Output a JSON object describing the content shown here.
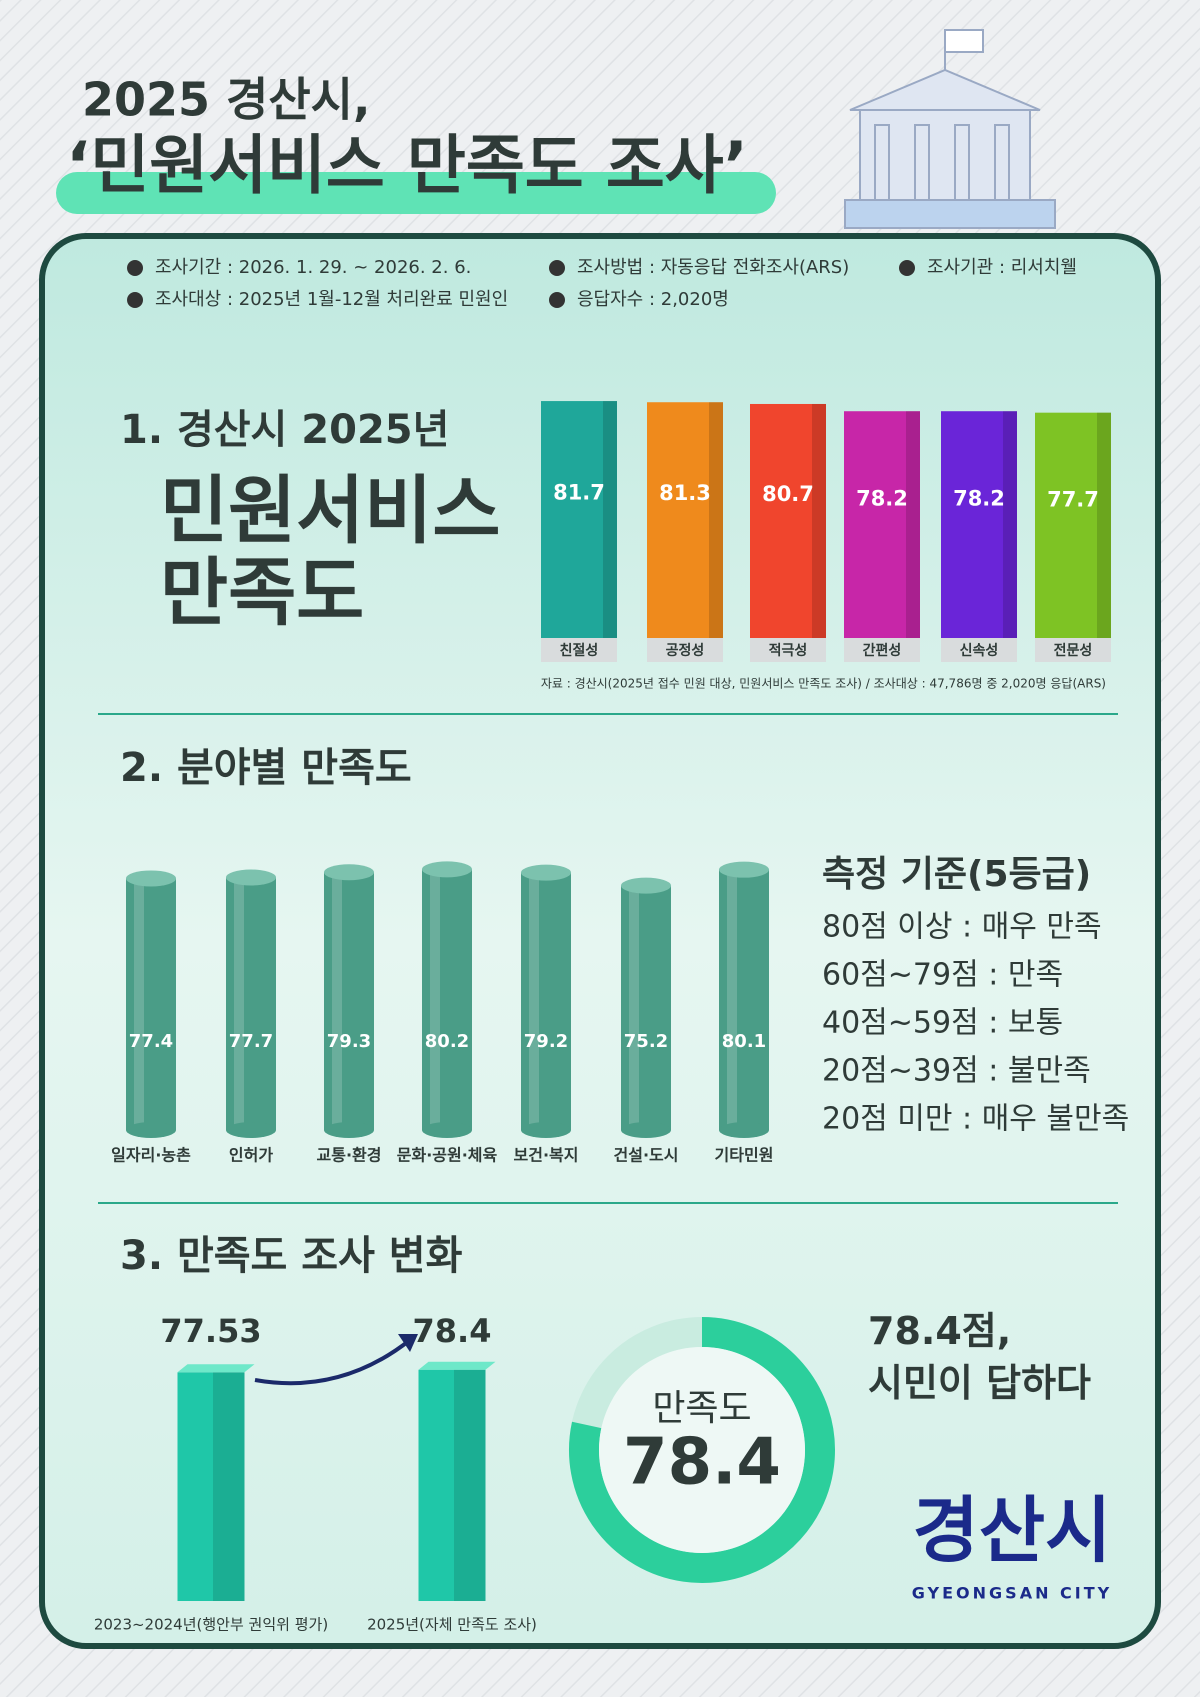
{
  "header": {
    "title_line1": "2025 경산시,",
    "title_line2": "‘민원서비스 만족도 조사’"
  },
  "info": [
    "조사기간 : 2026. 1. 29. ~ 2026. 2. 6.",
    "조사방법 : 자동응답 전화조사(ARS)",
    "조사기관 : 리서치웰",
    "조사대상 : 2025년 1월-12월 처리완료 민원인",
    "응답자수 : 2,020명"
  ],
  "chart_data": [
    {
      "type": "bar3d",
      "title": "1. 경산시 2025년",
      "subtitle": "민원서비스 만족도",
      "categories": [
        "친절성",
        "공정성",
        "적극성",
        "간편성",
        "신속성",
        "전문성"
      ],
      "values": [
        81.7,
        81.3,
        80.7,
        78.2,
        78.2,
        77.7
      ],
      "colors": [
        "#1fa79a",
        "#ef8a1c",
        "#f0452d",
        "#c726a8",
        "#6a25d8",
        "#7ec324"
      ],
      "source": "자료 : 경산시(2025년 접수 민원 대상, 민원서비스 만족도 조사) / 조사대상 : 47,786명 중 2,020명 응답(ARS)"
    },
    {
      "type": "cylinder",
      "title": "2. 분야별 만족도",
      "categories": [
        "일자리·농촌",
        "인허가",
        "교통·환경",
        "문화·공원·체육",
        "보건·복지",
        "건설·도시",
        "기타민원"
      ],
      "values": [
        77.4,
        77.7,
        79.3,
        80.2,
        79.2,
        75.2,
        80.1
      ],
      "color": "#4a9d87",
      "legend_title": "측정 기준(5등급)",
      "legend_items": [
        "80점 이상 : 매우 만족",
        "60점~79점 : 만족",
        "40점~59점 : 보통",
        "20점~39점 : 불만족",
        "20점 미만 : 매우 불만족"
      ]
    },
    {
      "type": "block",
      "title": "3. 만족도 조사 변화",
      "categories": [
        "2023~2024년(행안부 권익위 평가)",
        "2025년(자체 만족도 조사)"
      ],
      "values": [
        77.53,
        78.4
      ],
      "color": "#1fc7a8"
    },
    {
      "type": "donut",
      "categories": [
        "만족도"
      ],
      "values": [
        78.4
      ],
      "color": "#2ccf9c",
      "track_color": "#c9ece0",
      "headline": "78.4점, 시민이 답하다"
    }
  ],
  "logo": {
    "name": "경산시",
    "english": "GYEONGSAN CITY"
  }
}
